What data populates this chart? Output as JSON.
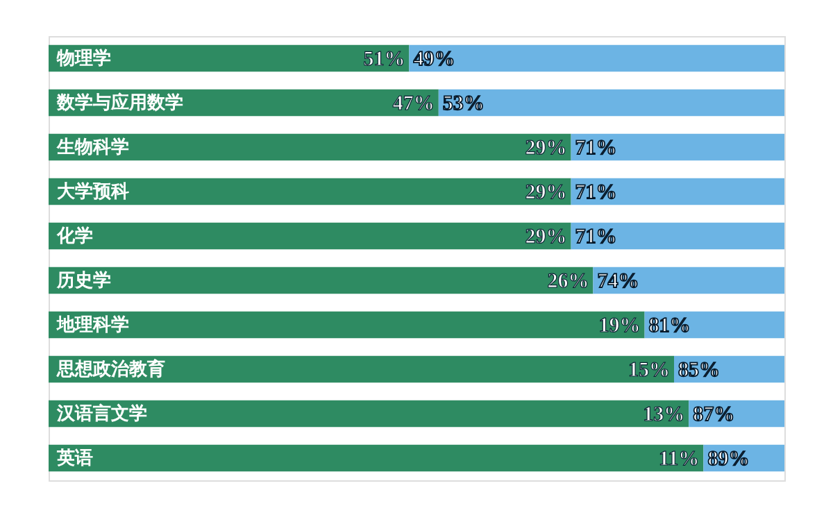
{
  "chart_data": {
    "type": "bar",
    "orientation": "horizontal",
    "stacked": true,
    "legend": false,
    "grid": false,
    "tick_labels": false,
    "categories": [
      "物理学",
      "数学与应用数学",
      "生物科学",
      "大学预科",
      "化学",
      "历史学",
      "地理科学",
      "思想政治教育",
      "汉语言文学",
      "英语"
    ],
    "series": [
      {
        "color": "#2e8b62",
        "values": [
          49,
          53,
          71,
          71,
          71,
          74,
          81,
          85,
          87,
          89
        ],
        "value_labels": [
          "49%",
          "53%",
          "71%",
          "71%",
          "71%",
          "74%",
          "81%",
          "85%",
          "87%",
          "89%"
        ]
      },
      {
        "color": "#6cb4e4",
        "values": [
          51,
          47,
          29,
          29,
          29,
          26,
          19,
          15,
          13,
          11
        ],
        "value_labels": [
          "51%",
          "47%",
          "29%",
          "29%",
          "29%",
          "26%",
          "19%",
          "15%",
          "13%",
          "11%"
        ]
      }
    ]
  }
}
